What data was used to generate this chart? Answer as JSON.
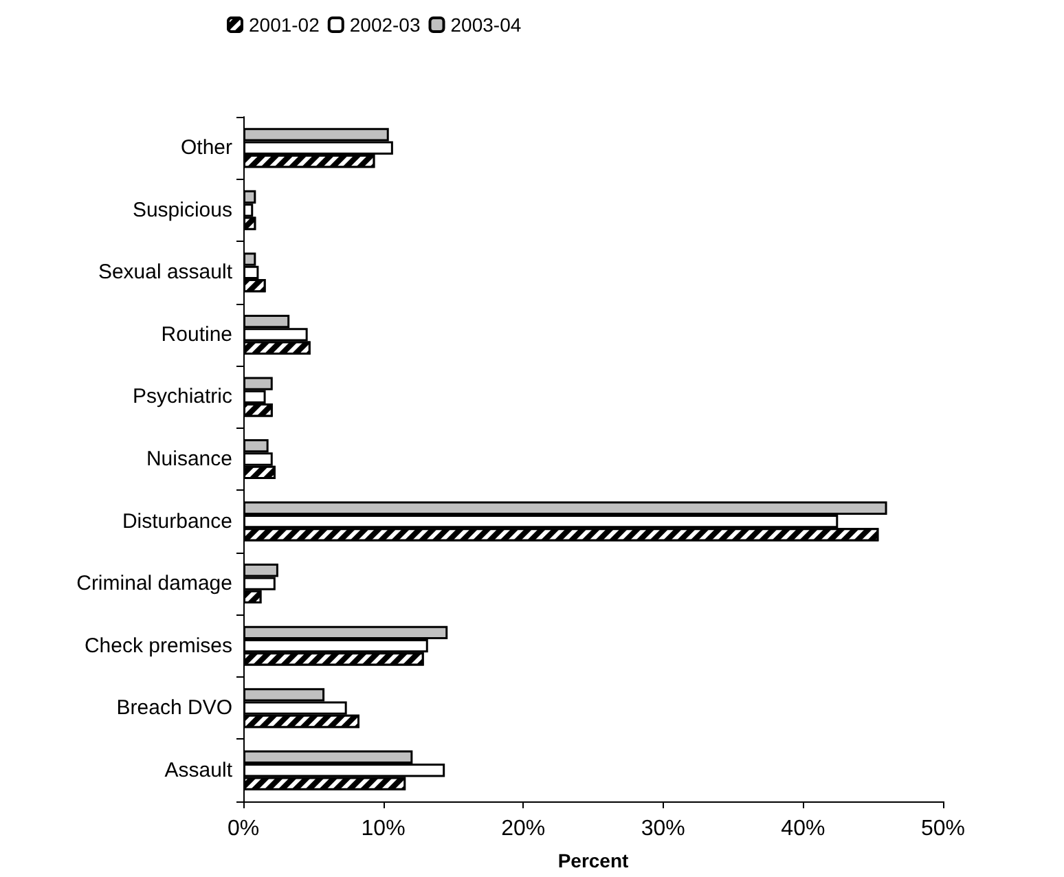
{
  "chart_data": {
    "type": "bar",
    "orientation": "horizontal",
    "xlabel": "Percent",
    "categories": [
      "Other",
      "Suspicious",
      "Sexual assault",
      "Routine",
      "Psychiatric",
      "Nuisance",
      "Disturbance",
      "Criminal damage",
      "Check premises",
      "Breach DVO",
      "Assault"
    ],
    "series": [
      {
        "name": "2003-04",
        "color": "#c0c0c0",
        "values": [
          10.4,
          0.9,
          0.9,
          3.3,
          2.1,
          1.8,
          46.0,
          2.5,
          14.6,
          5.8,
          12.1
        ]
      },
      {
        "name": "2002-03",
        "color": "#ffffff",
        "values": [
          10.7,
          0.7,
          1.1,
          4.6,
          1.6,
          2.1,
          42.5,
          2.3,
          13.2,
          7.4,
          14.4
        ]
      },
      {
        "name": "2001-02",
        "color": "#000000",
        "values": [
          9.4,
          0.9,
          1.6,
          4.8,
          2.1,
          2.3,
          45.4,
          1.3,
          12.9,
          8.3,
          11.6
        ]
      }
    ],
    "xlim": [
      0,
      50
    ],
    "xticks": [
      {
        "value": 0,
        "label": "0%"
      },
      {
        "value": 10,
        "label": "10%"
      },
      {
        "value": 20,
        "label": "20%"
      },
      {
        "value": 30,
        "label": "30%"
      },
      {
        "value": 40,
        "label": "40%"
      },
      {
        "value": 50,
        "label": "50%"
      }
    ],
    "grid": false,
    "legend": "top"
  }
}
